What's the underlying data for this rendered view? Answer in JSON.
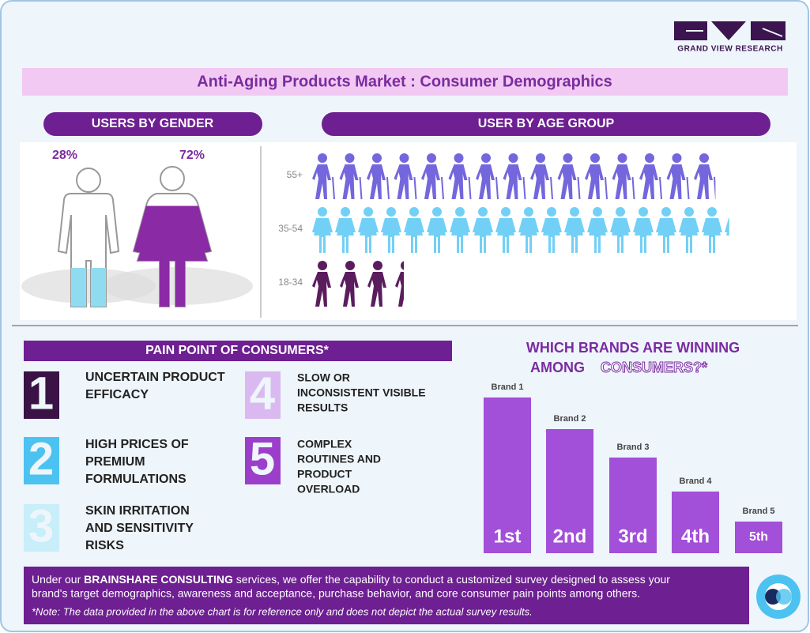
{
  "logo": "GRAND VIEW RESEARCH",
  "title": "Anti-Aging Products Market : Consumer Demographics",
  "chart_data": [
    {
      "type": "pictogram-fill",
      "title": "USERS BY GENDER",
      "values": [
        28,
        72
      ],
      "value_labels": [
        "28%",
        "72%"
      ],
      "colors": [
        "#8fdcf0",
        "#8a2aa4"
      ]
    },
    {
      "type": "pictogram-row",
      "title": "USER BY AGE GROUP",
      "categories": [
        "55+",
        "35-54",
        "18-34"
      ],
      "values": [
        17.6,
        18.2,
        4.0
      ],
      "colors": [
        "#7466dc",
        "#72d0f6",
        "#5b1c5e"
      ]
    },
    {
      "type": "bar",
      "title": [
        "WHICH BRANDS ARE WINNING",
        "AMONG",
        "CONSUMERS?*"
      ],
      "categories": [
        "Brand 1",
        "Brand 2",
        "Brand 3",
        "Brand 4",
        "Brand 5"
      ],
      "values": [
        197,
        157,
        121,
        78,
        40
      ],
      "ranks": [
        "1st",
        "2nd",
        "3rd",
        "4th",
        "5th"
      ],
      "ylim": [
        0,
        200
      ],
      "color": "#a24fd9"
    }
  ],
  "pain_points": {
    "title": "PAIN POINT OF CONSUMERS*",
    "items": [
      {
        "lines": [
          "UNCERTAIN PRODUCT",
          "EFFICACY"
        ]
      },
      {
        "lines": [
          "HIGH PRICES OF",
          "PREMIUM",
          "FORMULATIONS"
        ]
      },
      {
        "lines": [
          "SKIN IRRITATION",
          "AND SENSITIVITY",
          "RISKS"
        ]
      },
      {
        "lines": [
          "SLOW OR",
          "INCONSISTENT VISIBLE",
          "RESULTS"
        ]
      },
      {
        "lines": [
          "COMPLEX",
          "ROUTINES AND",
          "PRODUCT",
          "OVERLOAD"
        ]
      }
    ]
  },
  "footer": {
    "text_before": "Under our",
    "bold": "BRAINSHARE CONSULTING",
    "text_after": "services, we offer the capability to conduct a customized survey designed to assess your",
    "line2": "brand's target demographics, awareness and acceptance, purchase behavior, and core consumer pain points among others.",
    "note": "*Note: The data provided in the above chart is for reference only and does not depict the actual survey results."
  }
}
